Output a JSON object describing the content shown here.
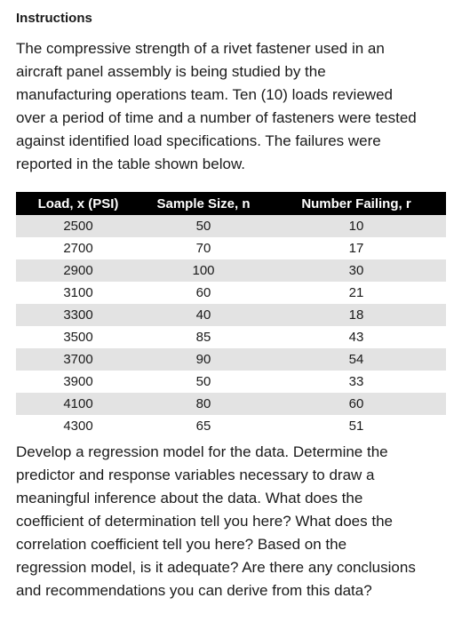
{
  "heading": "Instructions",
  "intro_lines": [
    "The compressive strength of a rivet fastener used in an",
    "aircraft panel assembly is being studied by the",
    "manufacturing operations team. Ten (10) loads reviewed",
    "over a period of time and a number of fasteners were tested",
    "against identified load specifications. The failures were",
    "reported in the table shown below."
  ],
  "table": {
    "headers": [
      "Load, x (PSI)",
      "Sample Size, n",
      "Number Failing, r"
    ],
    "rows": [
      [
        "2500",
        "50",
        "10"
      ],
      [
        "2700",
        "70",
        "17"
      ],
      [
        "2900",
        "100",
        "30"
      ],
      [
        "3100",
        "60",
        "21"
      ],
      [
        "3300",
        "40",
        "18"
      ],
      [
        "3500",
        "85",
        "43"
      ],
      [
        "3700",
        "90",
        "54"
      ],
      [
        "3900",
        "50",
        "33"
      ],
      [
        "4100",
        "80",
        "60"
      ],
      [
        "4300",
        "65",
        "51"
      ]
    ],
    "shade_color": "#e3e3e3",
    "header_color": "#000000"
  },
  "outro_lines": [
    "Develop a regression model for the data. Determine the",
    "predictor and response variables necessary to draw a",
    "meaningful inference about the data. What does the",
    "coefficient of determination tell you here? What does the",
    "correlation coefficient tell you here? Based on the",
    "regression model, is it adequate? Are there any conclusions",
    "and recommendations you can derive from this data?"
  ]
}
